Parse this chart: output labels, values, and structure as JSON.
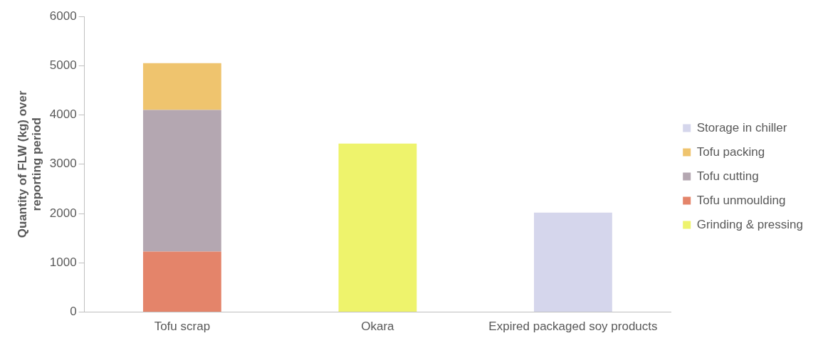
{
  "chart_data": {
    "type": "bar",
    "stacked": true,
    "ylabel": "Quantity of FLW (kg) over reporting period",
    "categories": [
      "Tofu scrap",
      "Okara",
      "Expired packaged soy products"
    ],
    "series": [
      {
        "name": "Grinding & pressing",
        "color": "#eef36c",
        "values": [
          null,
          3420,
          null
        ]
      },
      {
        "name": "Tofu unmoulding",
        "color": "#e4846a",
        "values": [
          1230,
          null,
          null
        ]
      },
      {
        "name": "Tofu cutting",
        "color": "#b4a7b1",
        "values": [
          2870,
          null,
          null
        ]
      },
      {
        "name": "Tofu packing",
        "color": "#efc46e",
        "values": [
          950,
          null,
          null
        ]
      },
      {
        "name": "Storage in chiller",
        "color": "#d5d6ec",
        "values": [
          null,
          null,
          2020
        ]
      }
    ],
    "ylim": [
      0,
      6000
    ],
    "yticks": [
      0,
      1000,
      2000,
      3000,
      4000,
      5000,
      6000
    ],
    "grid": false,
    "legend": "right"
  }
}
